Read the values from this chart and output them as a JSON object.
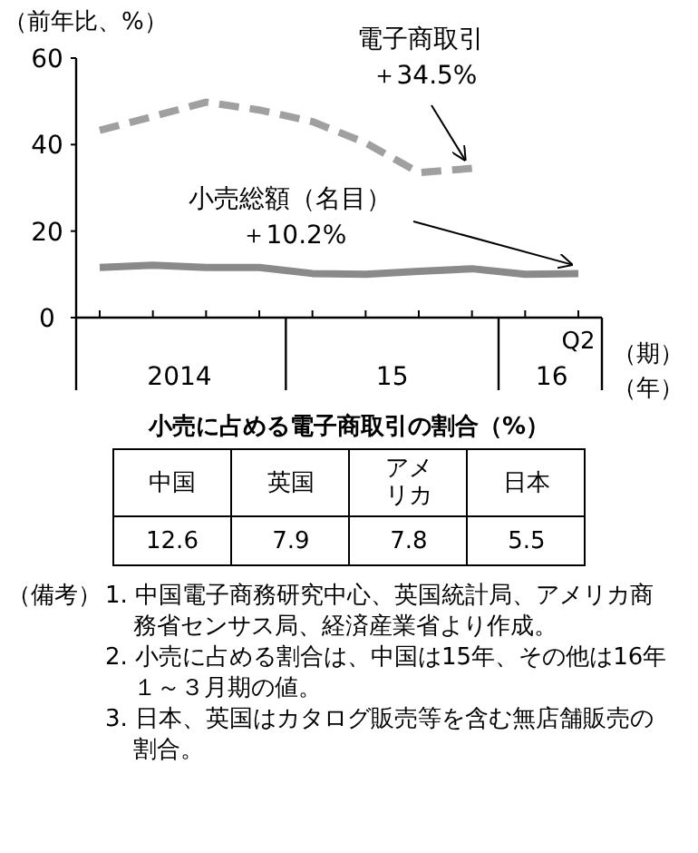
{
  "chart_data": [
    {
      "type": "line",
      "ylabel": "（前年比、%）",
      "xlabel": "（期）",
      "categories": [
        null,
        null,
        null,
        null,
        null,
        null,
        null,
        null,
        null,
        "Q2"
      ],
      "ylim": [
        0,
        60
      ],
      "yticks": [
        0,
        20,
        40,
        60
      ],
      "series": [
        {
          "color": "#a0a0a0",
          "line_style": "dashed",
          "values": [
            43.3,
            46.5,
            49.8,
            48.0,
            45.3,
            40.4,
            33.5,
            34.5,
            null,
            null
          ]
        },
        {
          "color": "#8a8a8a",
          "line_style": "solid",
          "values": [
            11.6,
            12.1,
            11.6,
            11.6,
            10.2,
            10.0,
            10.7,
            11.3,
            10.0,
            10.2
          ]
        }
      ],
      "annotations": [
        "2014",
        "15",
        "16",
        "（年）",
        "電子商取引",
        "＋34.5%",
        "小売総額（名目）",
        "＋10.2%"
      ]
    },
    {
      "type": "other",
      "title": "小売に占める電子商取引の割合（%）",
      "categories": [
        "中国",
        "英国",
        "アメリカ",
        "日本"
      ],
      "values": [
        12.6,
        7.9,
        7.8,
        5.5
      ],
      "data_labels": true,
      "annotations": [
        "（備考）",
        "1. 中国電子商務研究中心、英国統計局、アメリカ商務省センサス局、経済産業省より作成。",
        "2. 小売に占める割合は、中国は15年、その他は16年１～３月期の値。",
        "3. 日本、英国はカタログ販売等を含む無店舗販売の割合。"
      ]
    }
  ]
}
